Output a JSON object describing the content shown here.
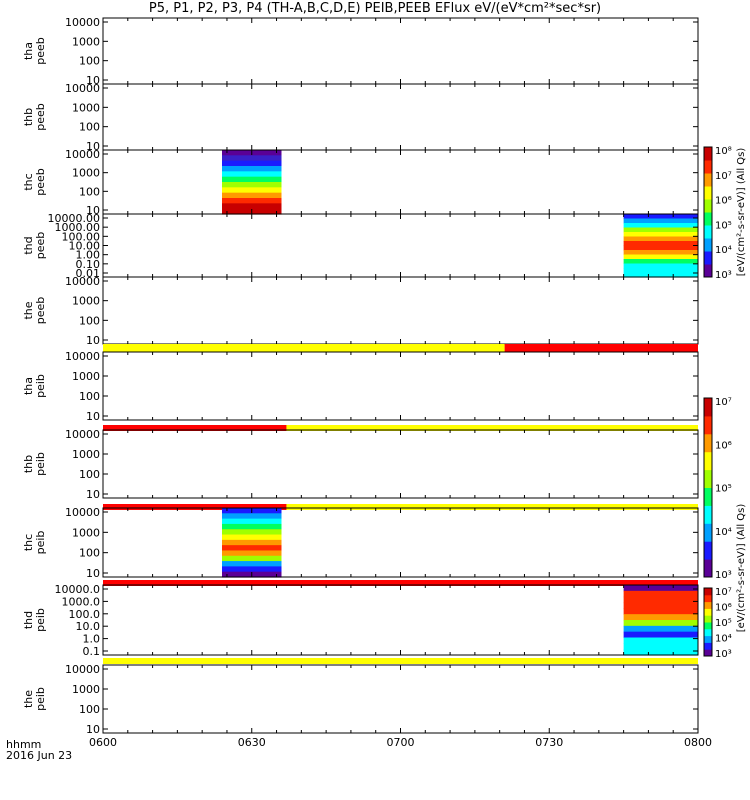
{
  "title": "P5, P1, P2, P3, P4 (TH-A,B,C,D,E) PEIB,PEEB EFlux eV/(eV*cm²*sec*sr)",
  "corner_label": {
    "line1": "hhmm",
    "line2": "2016 Jun 23"
  },
  "colorbar_label_peeb": "[eV/(cm²-s-sr-eV)] (All Qs)",
  "colorbar_label_peib": "[eV/(cm²-s-sr-eV)] (All Qs)",
  "colors": {
    "flag_yellow": "#ffff00",
    "flag_red": "#ff0000",
    "jet": [
      "#5a0096",
      "#1a1aff",
      "#00a0ff",
      "#00ffff",
      "#00ff60",
      "#a0ff00",
      "#ffff00",
      "#ff9a00",
      "#ff2a00",
      "#c80000"
    ]
  },
  "chart_data": {
    "type": "heatmap",
    "x_axis": {
      "label": "hhmm",
      "range": [
        "0600",
        "0800"
      ],
      "ticks": [
        "0600",
        "0630",
        "0700",
        "0730",
        "0800"
      ],
      "date": "2016 Jun 23"
    },
    "panels": [
      {
        "probe": "tha",
        "product": "peeb",
        "ylabel": "tha\npeeb",
        "yticks": [
          "10",
          "100",
          "1000",
          "10000"
        ],
        "data": []
      },
      {
        "probe": "thb",
        "product": "peeb",
        "ylabel": "thb\npeeb",
        "yticks": [
          "10",
          "100",
          "1000",
          "10000"
        ],
        "data": []
      },
      {
        "probe": "thc",
        "product": "peeb",
        "ylabel": "thc\npeeb",
        "yticks": [
          "10",
          "100",
          "1000",
          "10000"
        ],
        "data": [
          {
            "start": "0624",
            "end": "0636",
            "levels": [
              "#5a0096",
              "#3a20c8",
              "#1a1aff",
              "#00a0ff",
              "#00ffff",
              "#00ff60",
              "#a0ff00",
              "#ffff00",
              "#ff9a00",
              "#ff2a00",
              "#c80000",
              "#c80000"
            ]
          }
        ],
        "colorbar": {
          "ticks": [
            "10³",
            "10⁴",
            "10⁵",
            "10⁶",
            "10⁷",
            "10⁸"
          ]
        }
      },
      {
        "probe": "thd",
        "product": "peeb",
        "ylabel": "thd\npeeb",
        "yticks": [
          "0.01",
          "0.10",
          "1.00",
          "10.00",
          "100.00",
          "1000.00",
          "10000.00"
        ],
        "data": [
          {
            "start": "0745",
            "end": "0800",
            "levels": [
              "#1a1aff",
              "#00a0ff",
              "#00ffff",
              "#a0ff00",
              "#ffff00",
              "#ff9a00",
              "#ff2a00",
              "#ff2a00",
              "#ff9a00",
              "#ffff00",
              "#00ff60",
              "#00ffff",
              "#00ffff",
              "#00ffff"
            ]
          }
        ],
        "colorbar": {
          "ticks": [
            "10³",
            "10⁴",
            "10⁵",
            "10⁶",
            "10⁷",
            "10⁸"
          ]
        }
      },
      {
        "probe": "the",
        "product": "peeb",
        "ylabel": "the\npeeb",
        "yticks": [
          "10",
          "100",
          "1000",
          "10000"
        ],
        "data": []
      },
      {
        "probe": "tha",
        "product": "peib",
        "ylabel": "tha\npeib",
        "yticks": [
          "10",
          "100",
          "1000",
          "10000"
        ],
        "data": [],
        "flag_bar": [
          {
            "start": "0600",
            "end": "0721",
            "color": "yellow"
          },
          {
            "start": "0721",
            "end": "0800",
            "color": "red"
          }
        ]
      },
      {
        "probe": "thb",
        "product": "peib",
        "ylabel": "thb\npeib",
        "yticks": [
          "10",
          "100",
          "1000",
          "10000"
        ],
        "data": [],
        "flag_bar": [
          {
            "start": "0600",
            "end": "0637",
            "color": "red"
          },
          {
            "start": "0637",
            "end": "0800",
            "color": "yellow"
          }
        ]
      },
      {
        "probe": "thc",
        "product": "peib",
        "ylabel": "thc\npeib",
        "yticks": [
          "10",
          "100",
          "1000",
          "10000"
        ],
        "flag_bar": [
          {
            "start": "0600",
            "end": "0637",
            "color": "red"
          },
          {
            "start": "0637",
            "end": "0800",
            "color": "yellow"
          }
        ],
        "data": [
          {
            "start": "0624",
            "end": "0636",
            "levels": [
              "#1a1aff",
              "#00a0ff",
              "#00ffff",
              "#00ff60",
              "#a0ff00",
              "#ffff00",
              "#ff9a00",
              "#ff2a00",
              "#ff9a00",
              "#a0ff00",
              "#00a0ff",
              "#1a1aff",
              "#5a0096"
            ]
          }
        ],
        "colorbar": {
          "ticks": [
            "10³",
            "10⁴",
            "10⁵",
            "10⁶",
            "10⁷"
          ]
        }
      },
      {
        "probe": "thd",
        "product": "peib",
        "ylabel": "thd\npeib",
        "yticks": [
          "0.1",
          "1.0",
          "10.0",
          "100.0",
          "1000.0",
          "10000.0"
        ],
        "flag_bar": [
          {
            "start": "0600",
            "end": "0800",
            "color": "red"
          }
        ],
        "data": [
          {
            "start": "0745",
            "end": "0800",
            "levels": [
              "#5a0096",
              "#ff2a00",
              "#ff2a00",
              "#ff2a00",
              "#ff2a00",
              "#ff9a00",
              "#a0ff00",
              "#00a0ff",
              "#1a1aff",
              "#00ffff",
              "#00ffff",
              "#00ffff"
            ]
          }
        ],
        "colorbar": {
          "ticks": [
            "10³",
            "10⁴",
            "10⁵",
            "10⁶",
            "10⁷"
          ]
        }
      },
      {
        "probe": "the",
        "product": "peib",
        "ylabel": "the\npeib",
        "yticks": [
          "10",
          "100",
          "1000",
          "10000"
        ],
        "data": [],
        "flag_bar": [
          {
            "start": "0600",
            "end": "0800",
            "color": "yellow"
          }
        ]
      }
    ]
  }
}
